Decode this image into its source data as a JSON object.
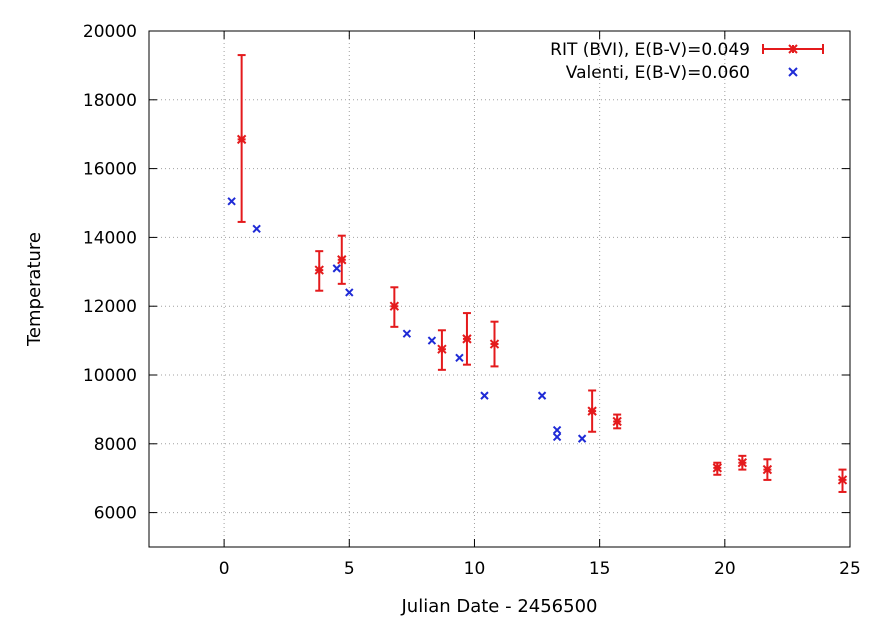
{
  "chart_data": {
    "type": "scatter",
    "title": "",
    "xlabel": "Julian Date - 2456500",
    "ylabel": "Temperature",
    "xlim": [
      -3,
      25
    ],
    "ylim": [
      5000,
      20000
    ],
    "x_ticks": [
      0,
      5,
      10,
      15,
      20,
      25
    ],
    "y_ticks": [
      6000,
      8000,
      10000,
      12000,
      14000,
      16000,
      18000,
      20000
    ],
    "grid": true,
    "legend_position": "top-right",
    "series": [
      {
        "name": "RIT (BVI), E(B-V)=0.049",
        "color": "#e41a1c",
        "style": "points-with-y-errorbars",
        "x": [
          0.7,
          3.8,
          4.7,
          6.8,
          8.7,
          9.7,
          10.8,
          14.7,
          15.7,
          19.7,
          20.7,
          21.7,
          24.7
        ],
        "y": [
          16850,
          13050,
          13350,
          12000,
          10750,
          11050,
          10900,
          8950,
          8650,
          7300,
          7450,
          7250,
          6950
        ],
        "yerr_low": [
          14450,
          12450,
          12650,
          11400,
          10150,
          10300,
          10250,
          8350,
          8450,
          7100,
          7250,
          6950,
          6600
        ],
        "yerr_high": [
          19300,
          13600,
          14050,
          12550,
          11300,
          11800,
          11550,
          9550,
          8850,
          7450,
          7650,
          7550,
          7250
        ]
      },
      {
        "name": "Valenti, E(B-V)=0.060",
        "color": "#1f2bd6",
        "style": "points",
        "x": [
          0.3,
          1.3,
          4.5,
          5.0,
          7.3,
          8.3,
          9.4,
          10.4,
          12.7,
          13.3,
          13.3,
          14.3
        ],
        "y": [
          15050,
          14250,
          13100,
          12400,
          11200,
          11000,
          10500,
          9400,
          9400,
          8400,
          8200,
          8150
        ]
      }
    ]
  }
}
